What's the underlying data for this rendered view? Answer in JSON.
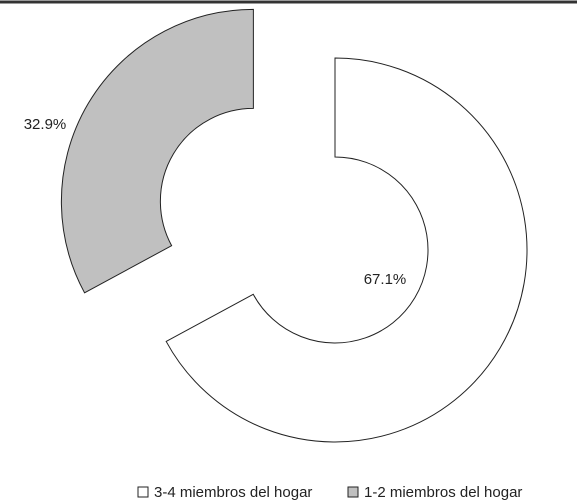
{
  "chart_data": {
    "type": "donut",
    "categories": [
      "3-4 miembros del hogar",
      "1-2 miembros del hogar"
    ],
    "values": [
      67.1,
      32.9
    ],
    "value_labels": [
      "67.1%",
      "32.9%"
    ],
    "colors": [
      "#ffffff",
      "#c0c0c0"
    ],
    "legend": "bottom"
  }
}
